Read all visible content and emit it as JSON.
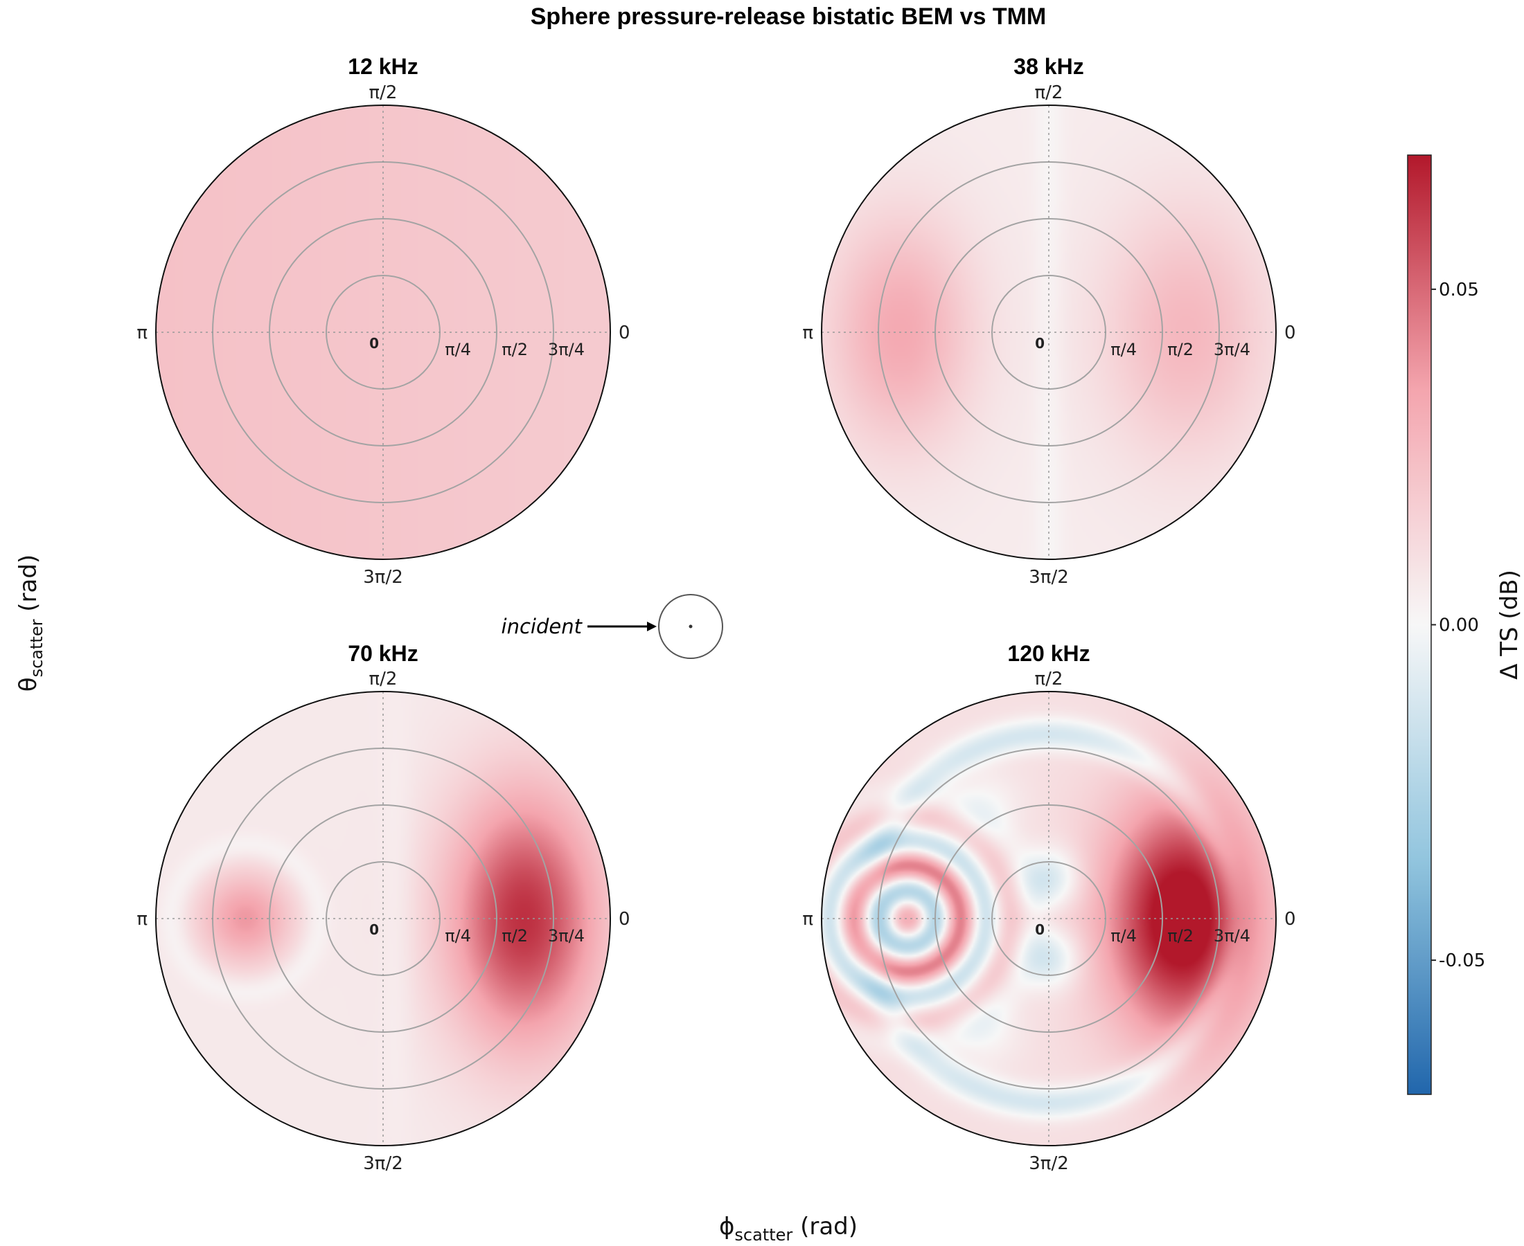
{
  "chart_data": {
    "type": "heatmap",
    "projection": "polar",
    "title": "Sphere pressure-release bistatic BEM vs TMM",
    "xlabel": "ϕ",
    "xlabel_sub": "scatter",
    "xlabel_unit": " (rad)",
    "ylabel": "θ",
    "ylabel_sub": "scatter",
    "ylabel_unit": " (rad)",
    "angular_axis": {
      "name": "phi_scatter",
      "tick_labels": [
        {
          "angle": 0,
          "label": "0"
        },
        {
          "angle": 1.5708,
          "label": "π/2"
        },
        {
          "angle": 3.1416,
          "label": "π"
        },
        {
          "angle": 4.7124,
          "label": "3π/2"
        }
      ]
    },
    "radial_axis": {
      "name": "theta_scatter",
      "range": [
        0,
        3.1416
      ],
      "gridlines": [
        0.7854,
        1.5708,
        2.3562
      ],
      "tick_labels": [
        {
          "value": 0,
          "label": "0"
        },
        {
          "value": 0.7854,
          "label": "π/4"
        },
        {
          "value": 1.5708,
          "label": "π/2"
        },
        {
          "value": 2.3562,
          "label": "3π/4"
        }
      ]
    },
    "colorbar": {
      "label": "Δ TS (dB)",
      "range": [
        -0.07,
        0.07
      ],
      "ticks": [
        {
          "value": 0.05,
          "label": "0.05"
        },
        {
          "value": 0.0,
          "label": "0.00"
        },
        {
          "value": -0.05,
          "label": "-0.05"
        }
      ],
      "colors": [
        "#2166ac",
        "#92c5de",
        "#f7f7f7",
        "#f4a5ae",
        "#b2182b"
      ]
    },
    "panels": [
      {
        "title": "12 kHz",
        "value_grid": {
          "phi_samples": [
            "0",
            "π/2",
            "π",
            "3π/2"
          ],
          "approx_delta_ts_range": [
            0.017,
            0.023
          ]
        }
      },
      {
        "title": "38 kHz",
        "value_grid": {
          "approx_delta_ts_range": [
            0.0,
            0.03
          ]
        }
      },
      {
        "title": "70 kHz",
        "value_grid": {
          "approx_delta_ts_range": [
            -0.005,
            0.06
          ]
        }
      },
      {
        "title": "120 kHz",
        "value_grid": {
          "approx_delta_ts_range": [
            -0.03,
            0.07
          ]
        }
      }
    ],
    "annotation": {
      "text": "incident"
    }
  }
}
